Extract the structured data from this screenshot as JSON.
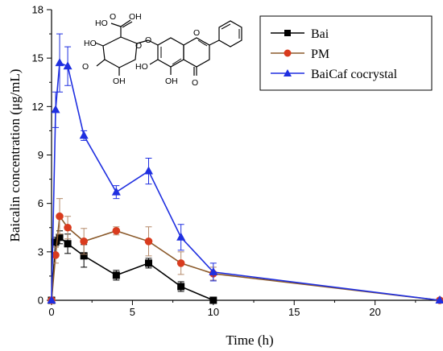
{
  "chart_data": {
    "type": "line",
    "xlabel": "Time (h)",
    "ylabel": "Baicalin concentration (μg/mL)",
    "xlim": [
      0,
      24
    ],
    "ylim": [
      0,
      18
    ],
    "xticks": [
      0,
      5,
      10,
      15,
      20
    ],
    "yticks": [
      0,
      3,
      6,
      9,
      12,
      15,
      18
    ],
    "grid": false,
    "legend_position": "top-right",
    "series": [
      {
        "name": "Bai",
        "color": "#000000",
        "marker": "square",
        "x": [
          0,
          0.25,
          0.5,
          1,
          2,
          4,
          6,
          8,
          10
        ],
        "y": [
          0,
          3.6,
          3.9,
          3.5,
          2.75,
          1.55,
          2.3,
          0.85,
          0
        ],
        "err": [
          0,
          0.3,
          0.4,
          0.6,
          0.7,
          0.3,
          0.3,
          0.3,
          0
        ]
      },
      {
        "name": "PM",
        "color": "#d93b1e",
        "line_color": "#8b5a2b",
        "marker": "circle",
        "x": [
          0,
          0.25,
          0.5,
          1,
          2,
          4,
          6,
          8,
          10,
          24
        ],
        "y": [
          0,
          2.8,
          5.2,
          4.5,
          3.65,
          4.3,
          3.65,
          2.3,
          1.65,
          0
        ],
        "err": [
          0,
          0.5,
          1.1,
          0.7,
          0.8,
          0.25,
          0.9,
          0.7,
          0.4,
          0
        ]
      },
      {
        "name": "BaiCaf cocrystal",
        "color": "#1f2fe0",
        "marker": "triangle",
        "x": [
          0,
          0.25,
          0.5,
          1,
          2,
          4,
          6,
          8,
          10,
          24
        ],
        "y": [
          0,
          11.8,
          14.7,
          14.5,
          10.2,
          6.7,
          8.0,
          3.9,
          1.75,
          0
        ],
        "err": [
          0,
          1.1,
          1.8,
          1.2,
          0.3,
          0.4,
          0.8,
          0.8,
          0.55,
          0
        ]
      }
    ]
  },
  "molecule": {
    "labels": [
      "O",
      "HO",
      "OH",
      "HO",
      "OH",
      "O",
      "O",
      "O",
      "O",
      "HO",
      "OH",
      "O"
    ]
  }
}
